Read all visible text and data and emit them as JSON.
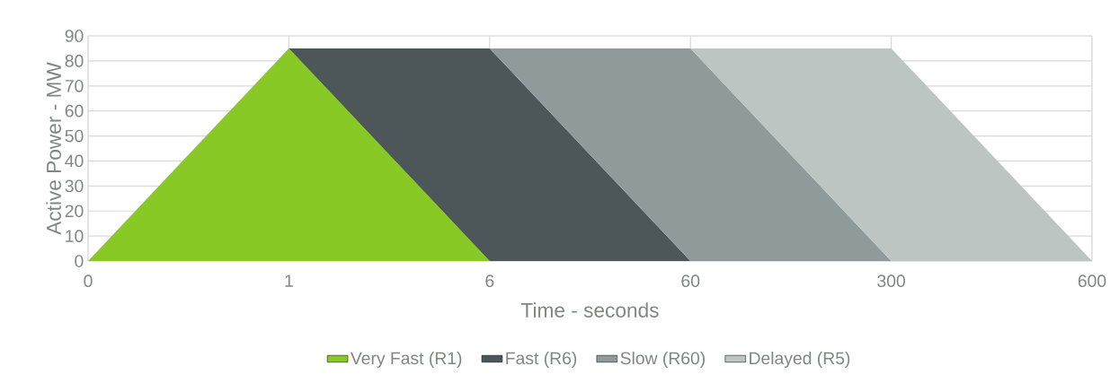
{
  "chart_data": {
    "type": "area",
    "stacked": true,
    "xlabel": "Time - seconds",
    "ylabel": "Active Power - MW",
    "categories": [
      "0",
      "1",
      "6",
      "60",
      "300",
      "600"
    ],
    "series": [
      {
        "name": "Very Fast (R1)",
        "color": "#88c926",
        "values": [
          0,
          85,
          0,
          null,
          null,
          null
        ]
      },
      {
        "name": "Fast (R6)",
        "color": "#4d5658",
        "values": [
          null,
          0,
          85,
          0,
          null,
          null
        ]
      },
      {
        "name": "Slow (R60)",
        "color": "#8e9b9a",
        "values": [
          null,
          null,
          0,
          85,
          0,
          null
        ]
      },
      {
        "name": "Delayed (R5)",
        "color": "#bcc5c2",
        "values": [
          null,
          null,
          null,
          0,
          85,
          0
        ]
      }
    ],
    "ylim": [
      0,
      90
    ],
    "yticks": [
      0,
      10,
      20,
      30,
      40,
      50,
      60,
      70,
      80,
      90
    ],
    "grid": true,
    "legend": "bottom"
  }
}
